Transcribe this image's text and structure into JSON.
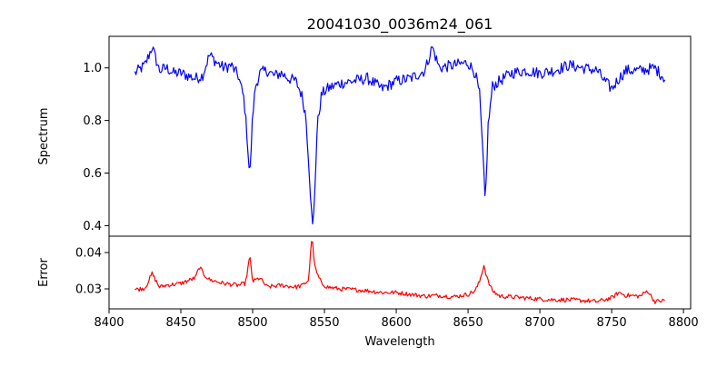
{
  "chart_data": {
    "type": "line",
    "title": "20041030_0036m24_061",
    "xlabel": "Wavelength",
    "xlim": [
      8400,
      8805
    ],
    "x_ticks": [
      8400,
      8450,
      8500,
      8550,
      8600,
      8650,
      8700,
      8750,
      8800
    ],
    "x_range_of_data": [
      8418,
      8787
    ],
    "grid": false,
    "panels": [
      {
        "ylabel": "Spectrum",
        "ylim": [
          0.36,
          1.12
        ],
        "y_ticks": [
          0.4,
          0.6,
          0.8,
          1.0
        ],
        "y_tick_labels": [
          "0.4",
          "0.6",
          "0.8",
          "1.0"
        ],
        "series": [
          {
            "color": "#0000ff",
            "x": [
              8418,
              8425,
              8430,
              8435,
              8440,
              8445,
              8450,
              8455,
              8460,
              8465,
              8470,
              8475,
              8480,
              8485,
              8490,
              8494,
              8496,
              8498,
              8500,
              8502,
              8505,
              8510,
              8515,
              8520,
              8525,
              8530,
              8534,
              8537,
              8539,
              8541,
              8542,
              8543,
              8545,
              8548,
              8552,
              8560,
              8570,
              8580,
              8590,
              8600,
              8610,
              8620,
              8625,
              8630,
              8640,
              8650,
              8655,
              8658,
              8660,
              8662,
              8664,
              8667,
              8672,
              8680,
              8690,
              8700,
              8710,
              8720,
              8730,
              8740,
              8745,
              8750,
              8755,
              8760,
              8770,
              8780,
              8787
            ],
            "y": [
              0.98,
              1.01,
              1.08,
              0.99,
              1.0,
              0.98,
              0.98,
              0.97,
              0.96,
              0.97,
              1.05,
              1.02,
              1.0,
              1.01,
              0.97,
              0.88,
              0.75,
              0.58,
              0.82,
              0.93,
              0.98,
              0.99,
              0.97,
              0.98,
              0.96,
              0.95,
              0.9,
              0.82,
              0.65,
              0.45,
              0.38,
              0.5,
              0.78,
              0.9,
              0.92,
              0.94,
              0.95,
              0.96,
              0.92,
              0.95,
              0.96,
              0.99,
              1.08,
              1.0,
              1.01,
              1.02,
              0.98,
              0.9,
              0.7,
              0.48,
              0.78,
              0.93,
              0.95,
              0.98,
              0.99,
              0.98,
              0.99,
              1.01,
              1.0,
              0.99,
              0.95,
              0.92,
              0.96,
              0.99,
              0.99,
              1.0,
              0.96
            ]
          }
        ]
      },
      {
        "ylabel": "Error",
        "ylim": [
          0.0245,
          0.0445
        ],
        "y_ticks": [
          0.03,
          0.04
        ],
        "y_tick_labels": [
          "0.03",
          "0.04"
        ],
        "series": [
          {
            "color": "#ff0000",
            "x": [
              8418,
              8425,
              8430,
              8435,
              8440,
              8450,
              8460,
              8463,
              8466,
              8470,
              8480,
              8490,
              8495,
              8498,
              8500,
              8505,
              8510,
              8520,
              8530,
              8535,
              8539,
              8541,
              8542,
              8543,
              8545,
              8548,
              8552,
              8560,
              8570,
              8580,
              8590,
              8600,
              8610,
              8620,
              8630,
              8640,
              8650,
              8655,
              8658,
              8661,
              8662,
              8664,
              8667,
              8672,
              8680,
              8690,
              8700,
              8710,
              8720,
              8730,
              8740,
              8750,
              8755,
              8760,
              8770,
              8775,
              8780,
              8787
            ],
            "y": [
              0.0298,
              0.0302,
              0.0342,
              0.0305,
              0.031,
              0.0315,
              0.033,
              0.036,
              0.034,
              0.0325,
              0.0315,
              0.031,
              0.0315,
              0.039,
              0.032,
              0.033,
              0.0305,
              0.031,
              0.0305,
              0.031,
              0.0325,
              0.0435,
              0.042,
              0.0365,
              0.034,
              0.0315,
              0.0305,
              0.03,
              0.0298,
              0.0295,
              0.029,
              0.029,
              0.0285,
              0.028,
              0.0282,
              0.0278,
              0.0285,
              0.0295,
              0.032,
              0.0365,
              0.035,
              0.032,
              0.0295,
              0.028,
              0.0278,
              0.0275,
              0.0272,
              0.027,
              0.027,
              0.0268,
              0.0265,
              0.0275,
              0.029,
              0.0282,
              0.028,
              0.0295,
              0.0265,
              0.0268
            ]
          }
        ]
      }
    ]
  }
}
